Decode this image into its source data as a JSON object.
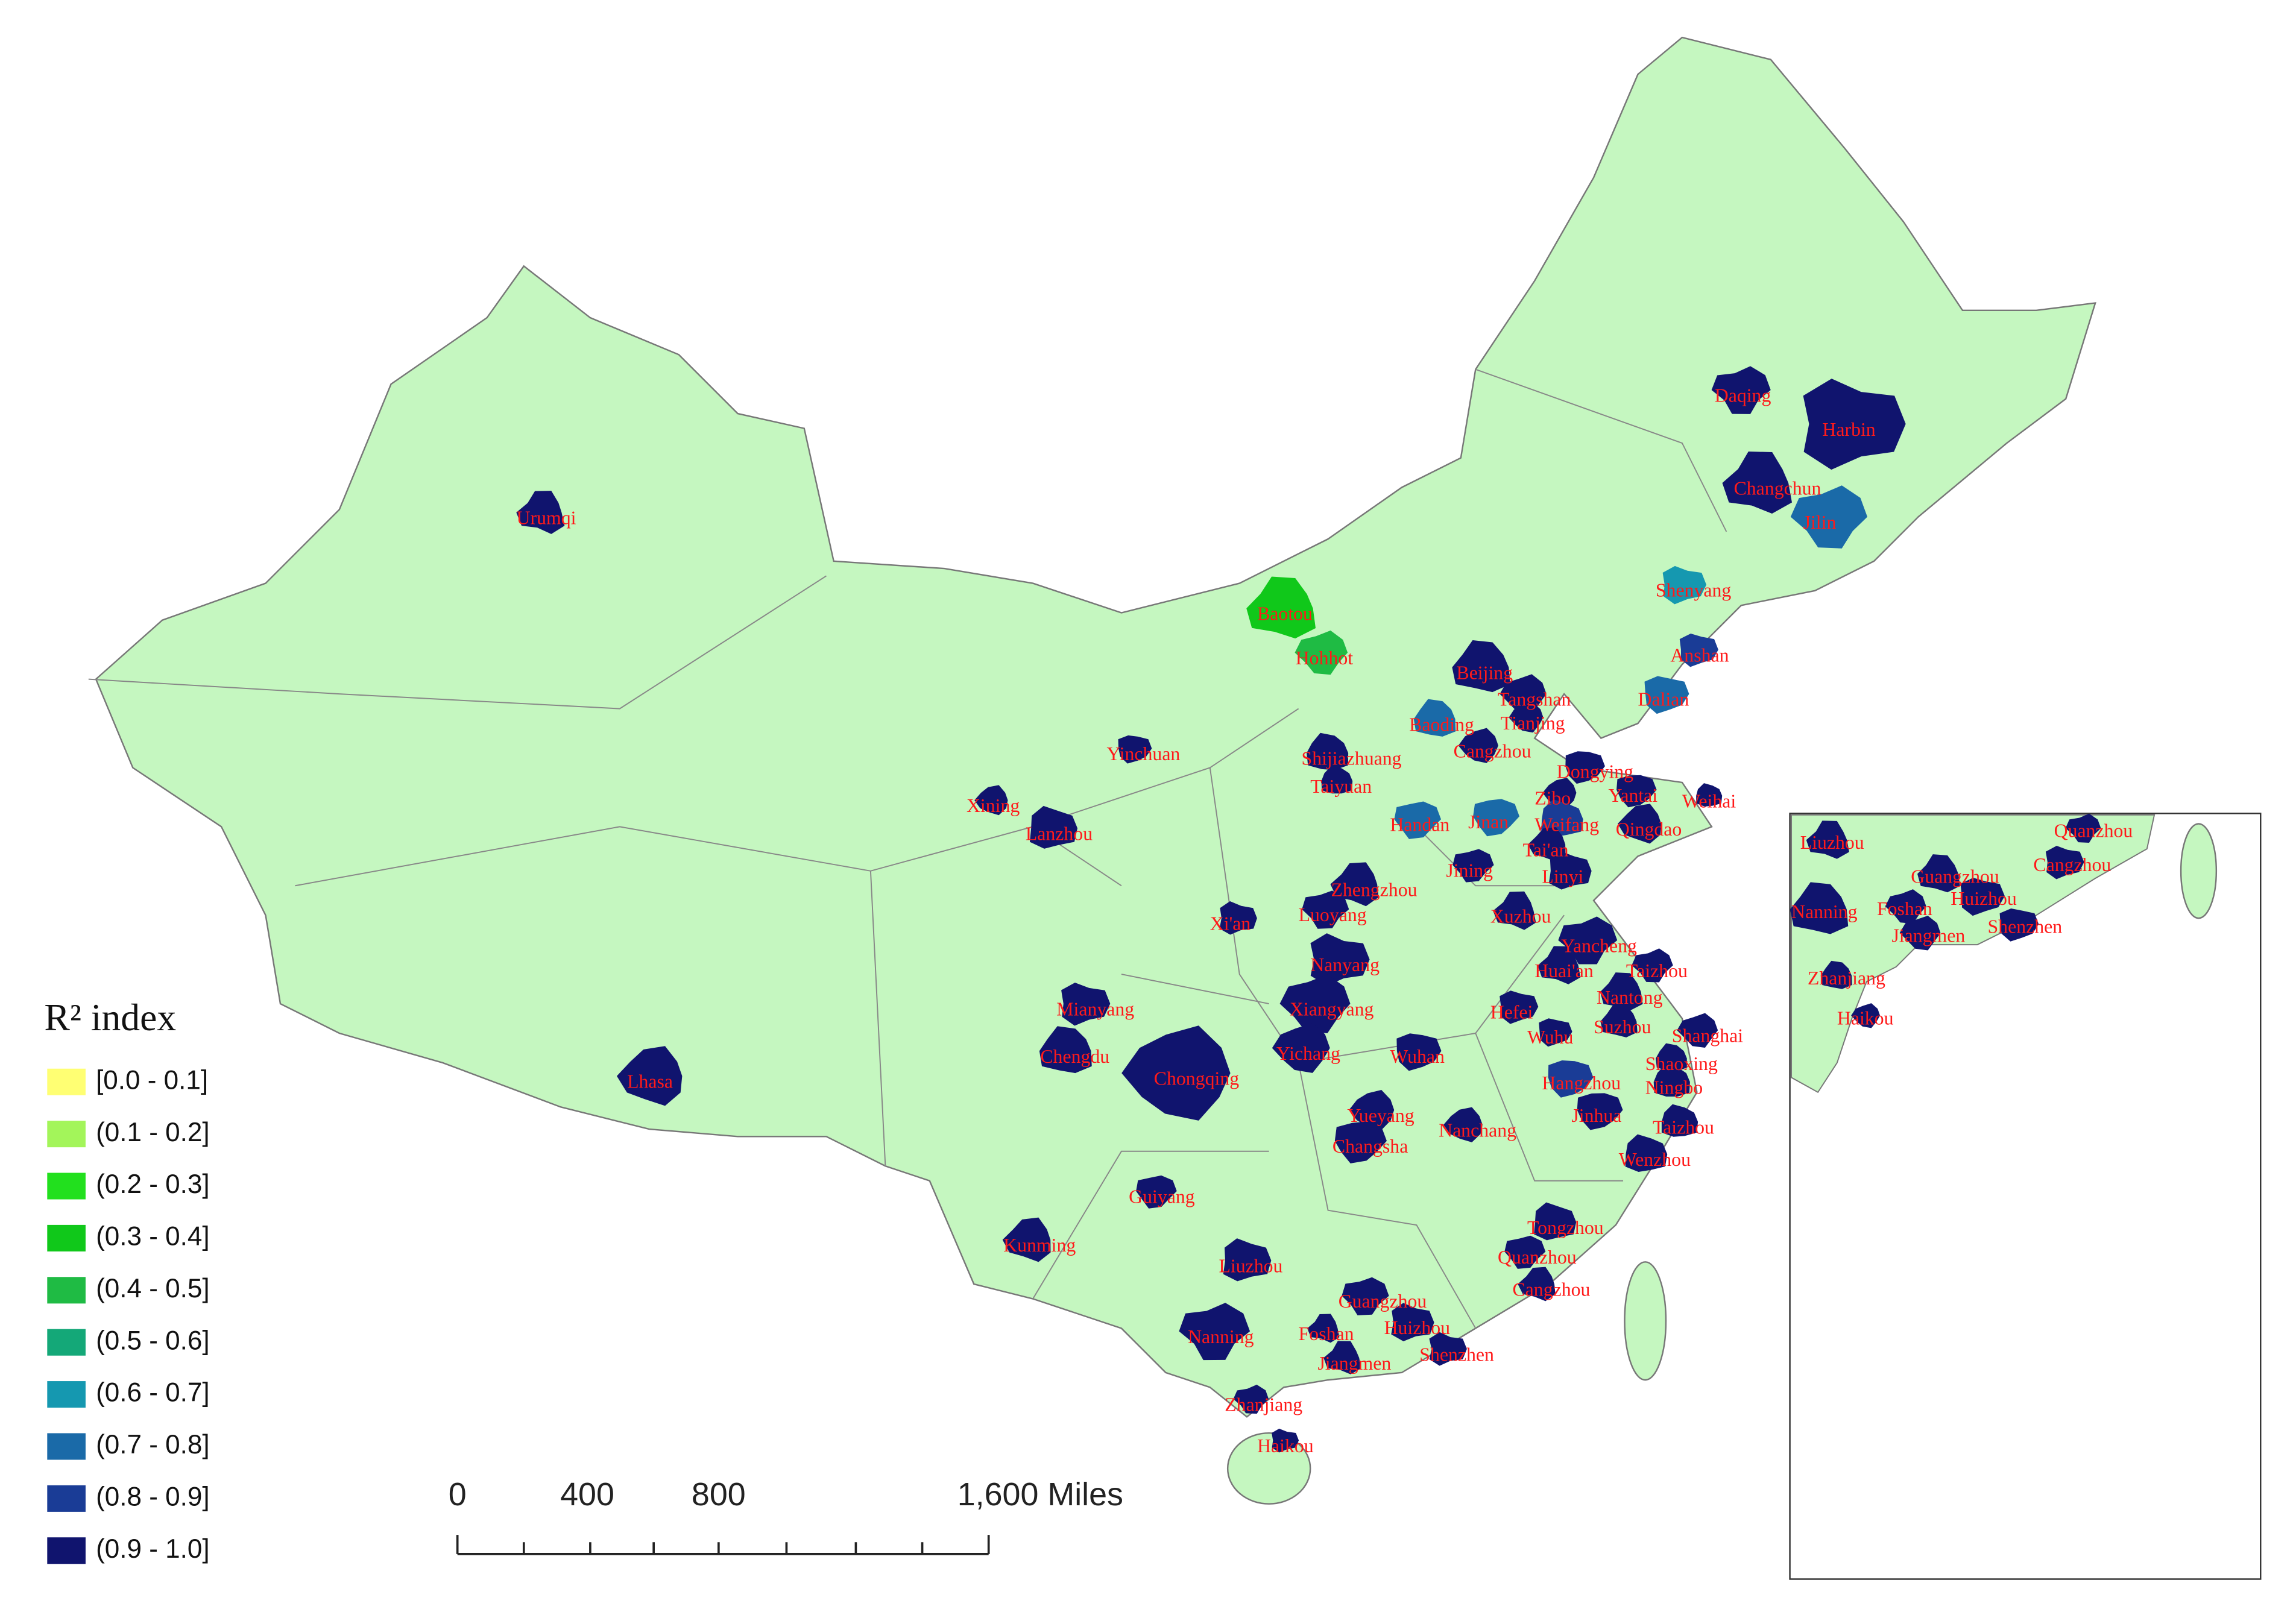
{
  "legend": {
    "title": "R² index",
    "items": [
      {
        "label": "[0.0 - 0.1]",
        "color": "#ffff73"
      },
      {
        "label": "(0.1 - 0.2]",
        "color": "#a3f55a"
      },
      {
        "label": "(0.2 - 0.3]",
        "color": "#22e01e"
      },
      {
        "label": "(0.3 - 0.4]",
        "color": "#10c81a"
      },
      {
        "label": "(0.4 - 0.5]",
        "color": "#1fbb44"
      },
      {
        "label": "(0.5 - 0.6]",
        "color": "#14a878"
      },
      {
        "label": "(0.6 - 0.7]",
        "color": "#1598b0"
      },
      {
        "label": "(0.7 - 0.8]",
        "color": "#1a6aa8"
      },
      {
        "label": "(0.8 - 0.9]",
        "color": "#1a3c96"
      },
      {
        "label": "(0.9 - 1.0]",
        "color": "#10146e"
      }
    ]
  },
  "scale_bar": {
    "labels": [
      "0",
      "400",
      "800",
      "1,600 Miles"
    ]
  },
  "map": {
    "cities": [
      "Urumqi",
      "Daqing",
      "Harbin",
      "Changchun",
      "Jilin",
      "Shenyang",
      "Baotou",
      "Hohhot",
      "Anshan",
      "Beijing",
      "Tangshan",
      "Dalian",
      "Baoding",
      "Tianjing",
      "Yinchuan",
      "Shijiazhuang",
      "Cangzhou",
      "Dongying",
      "Taiyuan",
      "Zibo",
      "Yantai",
      "Weihai",
      "Xining",
      "Jinan",
      "Weifang",
      "Qingdao",
      "Handan",
      "Lanzhou",
      "Tai'an",
      "Jining",
      "Linyi",
      "Zhengzhou",
      "Luoyang",
      "Xi'an",
      "Xuzhou",
      "Yancheng",
      "Nanyang",
      "Huai'an",
      "Taizhou",
      "Mianyang",
      "Nantong",
      "Xiangyang",
      "Hefei",
      "Suzhou",
      "Shanghai",
      "Wuhu",
      "Chengdu",
      "Yichang",
      "Wuhan",
      "Shaoxing",
      "Chongqing",
      "Hangzhou",
      "Ningbo",
      "Yueyang",
      "Jinhua",
      "Taizhou",
      "Nanchang",
      "Changsha",
      "Wenzhou",
      "Lhasa",
      "Guiyang",
      "Tongzhou",
      "Kunming",
      "Quanzhou",
      "Liuzhou",
      "Cangzhou",
      "Guangzhou",
      "Huizhou",
      "Foshan",
      "Nanning",
      "Shenzhen",
      "Jiangmen",
      "Zhanjiang",
      "Haikou"
    ]
  },
  "inset": {
    "cities": [
      "Liuzhou",
      "Quanzhou",
      "Cangzhou",
      "Guangzhou",
      "Foshan",
      "Huizhou",
      "Nanning",
      "Jiangmen",
      "Shenzhen",
      "Zhanjiang",
      "Haikou"
    ]
  }
}
